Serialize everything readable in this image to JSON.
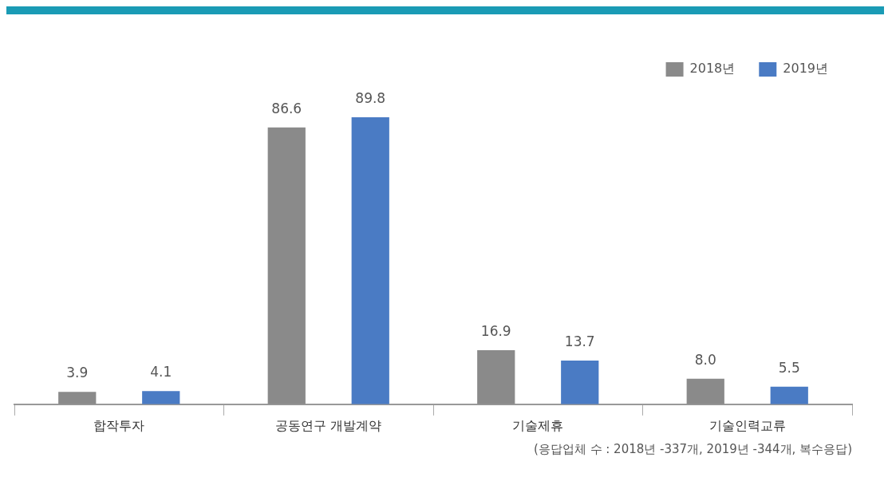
{
  "chart_data": {
    "type": "bar",
    "categories": [
      "합작투자",
      "공동연구 개발계약",
      "기술제휴",
      "기술인력교류"
    ],
    "series": [
      {
        "name": "2018년",
        "color": "#8a8a8a",
        "values": [
          3.9,
          86.6,
          16.9,
          8.0
        ],
        "value_labels": [
          "3.9",
          "86.6",
          "16.9",
          "8.0"
        ]
      },
      {
        "name": "2019년",
        "color": "#4a7bc4",
        "values": [
          4.1,
          89.8,
          13.7,
          5.5
        ],
        "value_labels": [
          "4.1",
          "89.8",
          "13.7",
          "5.5"
        ]
      }
    ],
    "legend": "top right",
    "grid": false,
    "annotations": [
      "(응답업체 수 : 2018년 -337개, 2019년 -344개, 복수응답)"
    ]
  }
}
